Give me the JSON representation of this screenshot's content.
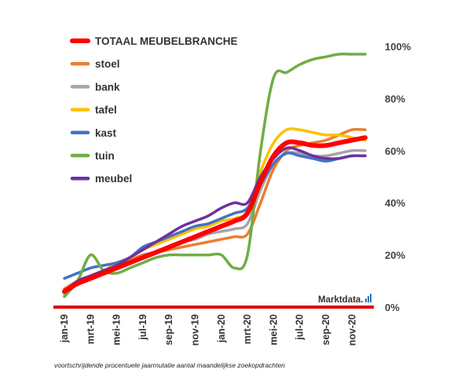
{
  "chart_data": {
    "type": "line",
    "title": "",
    "xlabel": "",
    "ylabel": "",
    "x_tick_labels": [
      "jan-19",
      "mrt-19",
      "mei-19",
      "jul-19",
      "sep-19",
      "nov-19",
      "jan-20",
      "mrt-20",
      "mei-20",
      "jul-20",
      "sep-20",
      "nov-20"
    ],
    "months": [
      "jan-19",
      "feb-19",
      "mrt-19",
      "apr-19",
      "mei-19",
      "jun-19",
      "jul-19",
      "aug-19",
      "sep-19",
      "okt-19",
      "nov-19",
      "dec-19",
      "jan-20",
      "feb-20",
      "mrt-20",
      "apr-20",
      "mei-20",
      "jun-20",
      "jul-20",
      "aug-20",
      "sep-20",
      "okt-20",
      "nov-20",
      "dec-20"
    ],
    "y_tick_labels": [
      "0%",
      "20%",
      "40%",
      "60%",
      "80%",
      "100%"
    ],
    "ylim": [
      0,
      100
    ],
    "y_axis_position": "right",
    "grid": false,
    "legend_position": "top-left",
    "series": [
      {
        "name": "stoel",
        "color": "#ED7D31",
        "values": [
          7,
          10,
          12,
          14,
          16,
          18,
          20,
          21,
          22,
          23,
          24,
          25,
          26,
          27,
          28,
          40,
          53,
          60,
          62,
          63,
          64,
          66,
          68,
          68
        ]
      },
      {
        "name": "bank",
        "color": "#A5A5A5",
        "values": [
          5,
          9,
          11,
          13,
          15,
          17,
          19,
          21,
          23,
          25,
          26,
          28,
          29,
          30,
          32,
          45,
          55,
          59,
          59,
          58,
          58,
          59,
          60,
          60
        ]
      },
      {
        "name": "tafel",
        "color": "#FFC000",
        "values": [
          6,
          10,
          12,
          14,
          17,
          19,
          22,
          24,
          26,
          28,
          30,
          31,
          33,
          34,
          37,
          52,
          63,
          68,
          68,
          67,
          66,
          66,
          65,
          64
        ]
      },
      {
        "name": "kast",
        "color": "#4472C4",
        "values": [
          11,
          13,
          15,
          16,
          17,
          19,
          23,
          25,
          27,
          29,
          31,
          32,
          34,
          36,
          38,
          47,
          55,
          59,
          58,
          57,
          56,
          57,
          58,
          58
        ]
      },
      {
        "name": "tuin",
        "color": "#70AD47",
        "values": [
          4,
          10,
          20,
          14,
          13,
          15,
          17,
          19,
          20,
          20,
          20,
          20,
          20,
          15,
          20,
          60,
          88,
          90,
          93,
          95,
          96,
          97,
          97,
          97
        ]
      },
      {
        "name": "meubel",
        "color": "#7030A0",
        "values": [
          6,
          10,
          12,
          14,
          16,
          19,
          22,
          25,
          28,
          31,
          33,
          35,
          38,
          40,
          40,
          50,
          57,
          61,
          60,
          58,
          57,
          57,
          58,
          58
        ]
      },
      {
        "name": "TOTAAL MEUBELBRANCHE",
        "color": "#FF0000",
        "values": [
          6,
          9,
          11,
          13,
          15,
          17,
          19,
          21,
          23,
          25,
          27,
          29,
          31,
          33,
          36,
          48,
          58,
          63,
          63,
          62,
          62,
          63,
          64,
          65
        ]
      }
    ]
  },
  "brand": "Marktdata.",
  "footnote": "voortschrijdende procentuele jaarmutatie aantal maandelijkse zoekopdrachten"
}
